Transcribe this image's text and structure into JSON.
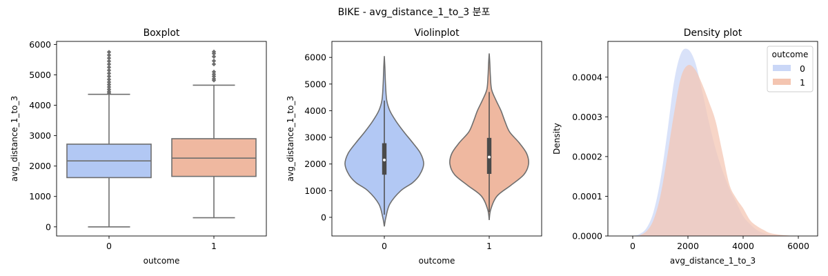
{
  "suptitle": "BIKE - avg_distance_1_to_3 분포",
  "colors": {
    "outcome_0": "#b2c8f4",
    "outcome_1": "#efb8a0",
    "line": "#6e6e6e",
    "density_0": "#cad7f7",
    "density_1": "#f4c5b1"
  },
  "chart_data": [
    {
      "type": "box",
      "title": "Boxplot",
      "xlabel": "outcome",
      "ylabel": "avg_distance_1_to_3",
      "categories": [
        "0",
        "1"
      ],
      "ylim": [
        -300,
        6100
      ],
      "yticks": [
        0,
        1000,
        2000,
        3000,
        4000,
        5000,
        6000
      ],
      "boxes": [
        {
          "category": "0",
          "whisker_low": 0,
          "q1": 1620,
          "median": 2170,
          "q3": 2720,
          "whisker_high": 4360,
          "outliers": [
            4400,
            4450,
            4520,
            4600,
            4680,
            4760,
            4850,
            4950,
            5050,
            5150,
            5250,
            5350,
            5450,
            5550,
            5650,
            5750
          ]
        },
        {
          "category": "1",
          "whisker_low": 300,
          "q1": 1660,
          "median": 2260,
          "q3": 2900,
          "whisker_high": 4660,
          "outliers": [
            4820,
            4870,
            4950,
            5020,
            5100,
            5350,
            5460,
            5600,
            5700,
            5760
          ]
        }
      ]
    },
    {
      "type": "violin",
      "title": "Violinplot",
      "xlabel": "outcome",
      "ylabel": "avg_distance_1_to_3",
      "categories": [
        "0",
        "1"
      ],
      "ylim": [
        -700,
        6600
      ],
      "yticks": [
        0,
        1000,
        2000,
        3000,
        4000,
        5000,
        6000
      ],
      "violins": [
        {
          "category": "0",
          "min": -340,
          "max": 6050,
          "q1": 1600,
          "median": 2150,
          "q3": 2780,
          "whisker_low": 100,
          "whisker_high": 4380,
          "profile": [
            [
              -340,
              0.0
            ],
            [
              0,
              0.04
            ],
            [
              500,
              0.14
            ],
            [
              1000,
              0.42
            ],
            [
              1300,
              0.72
            ],
            [
              1600,
              0.9
            ],
            [
              2000,
              1.0
            ],
            [
              2400,
              0.92
            ],
            [
              2800,
              0.72
            ],
            [
              3200,
              0.5
            ],
            [
              3600,
              0.3
            ],
            [
              4000,
              0.14
            ],
            [
              4400,
              0.06
            ],
            [
              5000,
              0.03
            ],
            [
              5600,
              0.015
            ],
            [
              6050,
              0.0
            ]
          ]
        },
        {
          "category": "1",
          "min": -100,
          "max": 6150,
          "q1": 1630,
          "median": 2260,
          "q3": 2980,
          "whisker_low": 200,
          "whisker_high": 4700,
          "profile": [
            [
              -100,
              0.0
            ],
            [
              300,
              0.04
            ],
            [
              800,
              0.2
            ],
            [
              1200,
              0.55
            ],
            [
              1600,
              0.88
            ],
            [
              2000,
              1.0
            ],
            [
              2400,
              0.95
            ],
            [
              2800,
              0.76
            ],
            [
              3200,
              0.52
            ],
            [
              3600,
              0.4
            ],
            [
              4000,
              0.3
            ],
            [
              4400,
              0.17
            ],
            [
              4800,
              0.06
            ],
            [
              5300,
              0.03
            ],
            [
              5800,
              0.015
            ],
            [
              6150,
              0.0
            ]
          ]
        }
      ]
    },
    {
      "type": "area",
      "title": "Density plot",
      "xlabel": "avg_distance_1_to_3",
      "ylabel": "Density",
      "xlim": [
        -900,
        6700
      ],
      "ylim": [
        0,
        0.00049
      ],
      "xticks": [
        0,
        2000,
        4000,
        6000
      ],
      "yticks": [
        0.0,
        0.0001,
        0.0002,
        0.0003,
        0.0004
      ],
      "ytick_labels": [
        "0.0000",
        "0.0001",
        "0.0002",
        "0.0003",
        "0.0004"
      ],
      "legend": {
        "title": "outcome",
        "position": "top-right",
        "entries": [
          "0",
          "1"
        ]
      },
      "series": [
        {
          "name": "0",
          "x": [
            0,
            250,
            500,
            750,
            1000,
            1250,
            1500,
            1750,
            2000,
            2250,
            2500,
            2750,
            3000,
            3250,
            3500,
            3750,
            4000,
            4250,
            4500,
            4750,
            5000,
            5500,
            6000
          ],
          "y": [
            0.0,
            5e-06,
            2e-05,
            6e-05,
            0.00014,
            0.00026,
            0.00039,
            0.00046,
            0.00047,
            0.00044,
            0.00037,
            0.00029,
            0.00022,
            0.000165,
            0.00012,
            8.5e-05,
            5e-05,
            3e-05,
            1.5e-05,
            7e-06,
            3e-06,
            1e-06,
            0.0
          ]
        },
        {
          "name": "1",
          "x": [
            200,
            500,
            750,
            1000,
            1250,
            1500,
            1750,
            2000,
            2250,
            2500,
            2750,
            3000,
            3250,
            3500,
            3750,
            4000,
            4250,
            4500,
            4750,
            5000,
            5500,
            6000
          ],
          "y": [
            0.0,
            1.2e-05,
            4e-05,
            0.0001,
            0.0002,
            0.00031,
            0.0004,
            0.00043,
            0.00042,
            0.000385,
            0.00034,
            0.00029,
            0.00021,
            0.00013,
            9.5e-05,
            7e-05,
            4e-05,
            2.5e-05,
            1.5e-05,
            7e-06,
            2e-06,
            0.0
          ]
        }
      ]
    }
  ]
}
